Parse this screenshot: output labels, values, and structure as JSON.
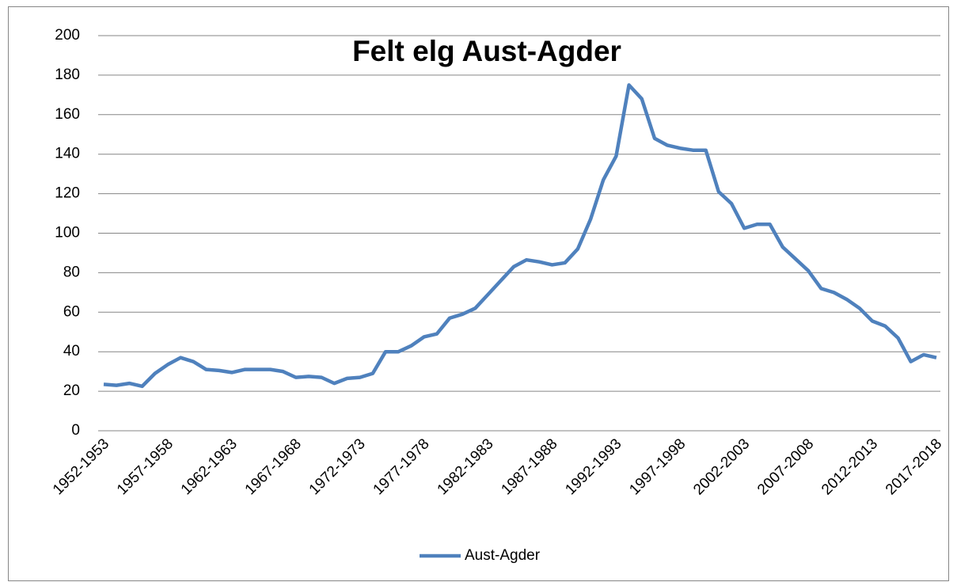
{
  "chart_data": {
    "type": "line",
    "title": "Felt elg Aust-Agder",
    "categories": [
      "1952-1953",
      null,
      null,
      null,
      null,
      "1957-1958",
      null,
      null,
      null,
      null,
      "1962-1963",
      null,
      null,
      null,
      null,
      "1967-1968",
      null,
      null,
      null,
      null,
      "1972-1973",
      null,
      null,
      null,
      null,
      "1977-1978",
      null,
      null,
      null,
      null,
      "1982-1983",
      null,
      null,
      null,
      null,
      "1987-1988",
      null,
      null,
      null,
      null,
      "1992-1993",
      null,
      null,
      null,
      null,
      "1997-1998",
      null,
      null,
      null,
      null,
      "2002-2003",
      null,
      null,
      null,
      null,
      "2007-2008",
      null,
      null,
      null,
      null,
      "2012-2013",
      null,
      null,
      null,
      null,
      "2017-2018"
    ],
    "series": [
      {
        "name": "Aust-Agder",
        "color": "#4f81bd",
        "values": [
          23.5,
          23,
          24,
          22.5,
          29,
          33.5,
          37,
          35,
          31,
          30.5,
          29.5,
          31,
          31,
          31,
          30,
          27,
          27.5,
          27,
          24,
          26.5,
          27,
          29,
          40,
          40,
          43,
          47.5,
          49,
          57,
          59,
          62,
          69,
          76,
          83,
          86.5,
          85.5,
          84,
          85,
          92,
          107,
          127,
          139,
          175,
          168,
          148,
          144.5,
          143,
          142,
          142,
          121,
          115,
          102.5,
          104.5,
          104.5,
          93,
          87,
          81,
          72,
          70,
          66.5,
          62,
          55.5,
          53,
          47,
          35,
          38.5,
          37
        ]
      }
    ],
    "ylim": [
      0,
      200
    ],
    "yticks": [
      0,
      20,
      40,
      60,
      80,
      100,
      120,
      140,
      160,
      180,
      200
    ],
    "grid": true,
    "legend": "bottom"
  }
}
